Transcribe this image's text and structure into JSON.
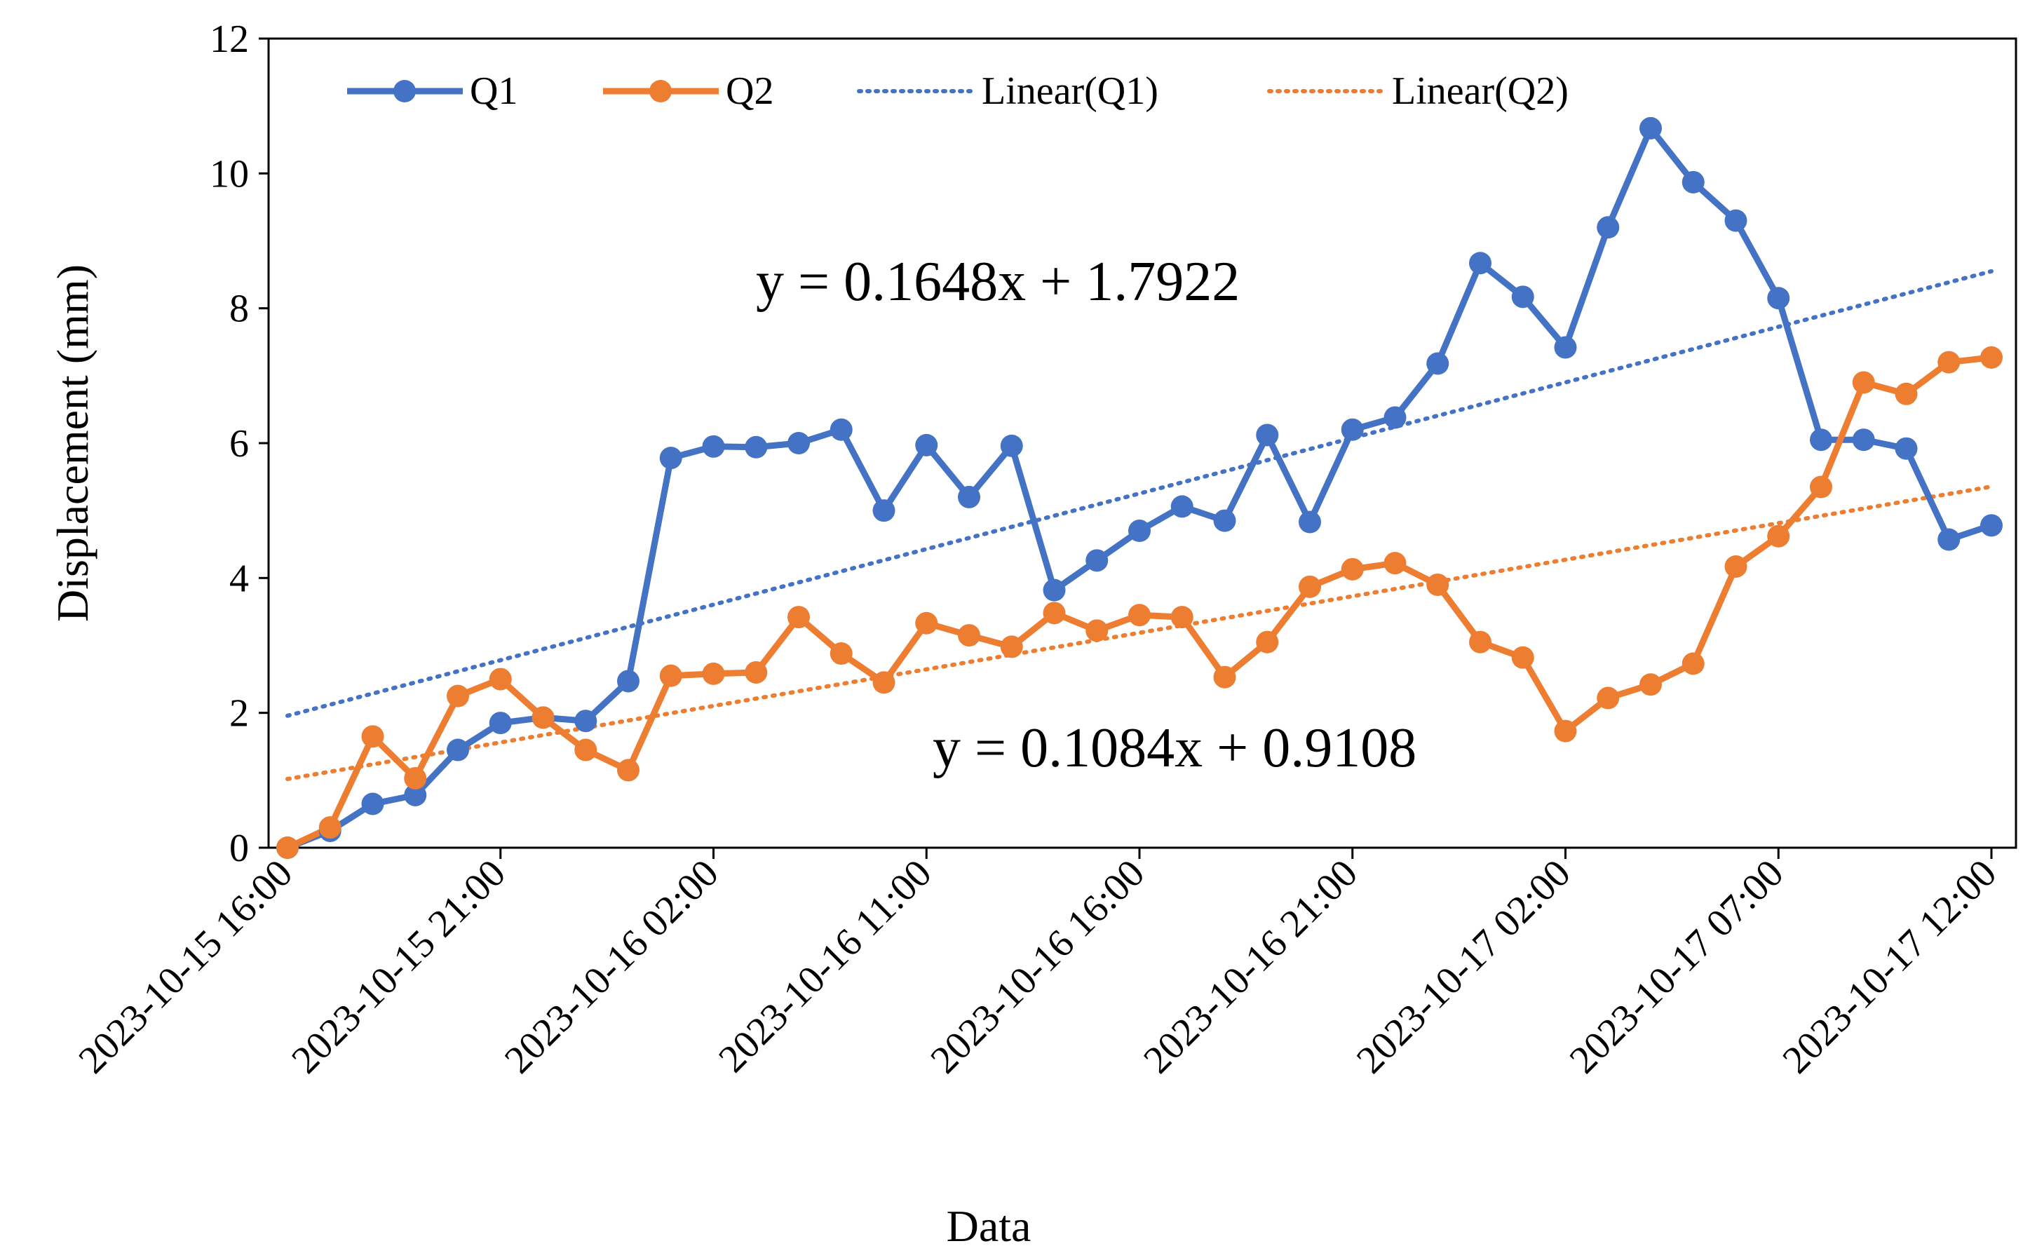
{
  "chart_data": {
    "type": "line",
    "xlabel": "Data",
    "ylabel": "Displacement (mm)",
    "ylim": [
      0,
      12
    ],
    "yticks": [
      0,
      2,
      4,
      6,
      8,
      10,
      12
    ],
    "x_tick_labels": [
      "2023-10-15 16:00",
      "2023-10-15 21:00",
      "2023-10-16 02:00",
      "2023-10-16 11:00",
      "2023-10-16 16:00",
      "2023-10-16 21:00",
      "2023-10-17 02:00",
      "2023-10-17 07:00",
      "2023-10-17 12:00"
    ],
    "n_points": 41,
    "series": [
      {
        "name": "Q1",
        "color": "#4472C4",
        "values": [
          0,
          0.25,
          0.65,
          0.78,
          1.45,
          1.85,
          1.93,
          1.88,
          2.47,
          5.78,
          5.95,
          5.94,
          6.0,
          6.2,
          5.0,
          5.97,
          5.2,
          5.96,
          3.82,
          4.26,
          4.7,
          5.06,
          4.85,
          6.12,
          4.83,
          6.2,
          6.38,
          7.18,
          8.67,
          8.17,
          7.42,
          9.2,
          10.67,
          9.87,
          9.3,
          8.15,
          6.05,
          6.05,
          5.92,
          4.57,
          4.78
        ]
      },
      {
        "name": "Q2",
        "color": "#ED7D31",
        "values": [
          0,
          0.3,
          1.65,
          1.03,
          2.25,
          2.5,
          1.93,
          1.45,
          1.15,
          2.55,
          2.58,
          2.6,
          3.42,
          2.88,
          2.45,
          3.33,
          3.15,
          2.98,
          3.48,
          3.22,
          3.45,
          3.42,
          2.53,
          3.05,
          3.87,
          4.13,
          4.22,
          3.9,
          3.05,
          2.82,
          1.73,
          2.22,
          2.42,
          2.73,
          4.17,
          4.62,
          5.35,
          6.9,
          6.73,
          7.2,
          7.27
        ]
      }
    ],
    "trendlines": [
      {
        "name": "Linear(Q1)",
        "color": "#4472C4",
        "slope": 0.1648,
        "intercept": 1.7922,
        "equation": "y = 0.1648x + 1.7922"
      },
      {
        "name": "Linear(Q2)",
        "color": "#ED7D31",
        "slope": 0.1084,
        "intercept": 0.9108,
        "equation": "y = 0.1084x + 0.9108"
      }
    ],
    "legend": [
      "Q1",
      "Q2",
      "Linear(Q1)",
      "Linear(Q2)"
    ],
    "legend_position": "top"
  }
}
